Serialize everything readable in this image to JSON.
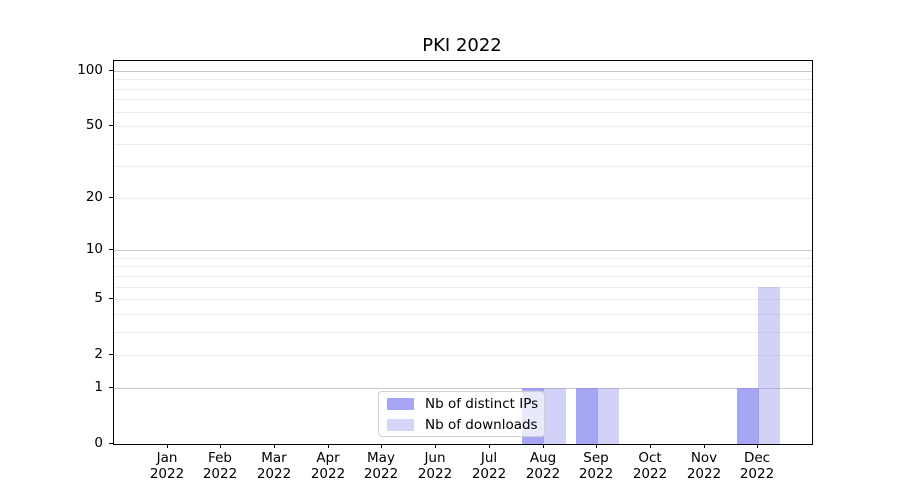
{
  "title": "PKI 2022",
  "chart_data": {
    "type": "bar",
    "title": "PKI 2022",
    "categories": [
      "Jan 2022",
      "Feb 2022",
      "Mar 2022",
      "Apr 2022",
      "May 2022",
      "Jun 2022",
      "Jul 2022",
      "Aug 2022",
      "Sep 2022",
      "Oct 2022",
      "Nov 2022",
      "Dec 2022"
    ],
    "months": [
      "Jan",
      "Feb",
      "Mar",
      "Apr",
      "May",
      "Jun",
      "Jul",
      "Aug",
      "Sep",
      "Oct",
      "Nov",
      "Dec"
    ],
    "year": "2022",
    "series": [
      {
        "name": "Nb of distinct IPs",
        "values": [
          0,
          0,
          0,
          0,
          0,
          0,
          0,
          1,
          1,
          0,
          0,
          1
        ],
        "fill": "rgba(132,132,240,0.72)",
        "swatch": "#a6a6f4"
      },
      {
        "name": "Nb of downloads",
        "values": [
          0,
          0,
          0,
          0,
          0,
          0,
          0,
          1,
          1,
          0,
          0,
          6
        ],
        "fill": "rgba(148,148,238,0.42)",
        "swatch": "#d5d5f8"
      }
    ],
    "xlabel": "",
    "ylabel": "",
    "yscale": "log1p",
    "ylim": [
      0,
      113
    ],
    "yticks": [
      0,
      1,
      2,
      5,
      10,
      20,
      50,
      100
    ],
    "grid": {
      "on": true,
      "major_values": [
        1,
        10,
        100
      ],
      "minor_values": [
        2,
        3,
        4,
        5,
        6,
        7,
        8,
        9,
        20,
        30,
        40,
        50,
        60,
        70,
        80,
        90
      ],
      "major_color": "#c8c8c8",
      "minor_color": "#ececec"
    },
    "legend_position": "lower center"
  },
  "colors": {
    "distinct_ips": "#a6a6f4",
    "downloads": "#d5d5f8",
    "spine": "#000000",
    "background": "#ffffff"
  }
}
